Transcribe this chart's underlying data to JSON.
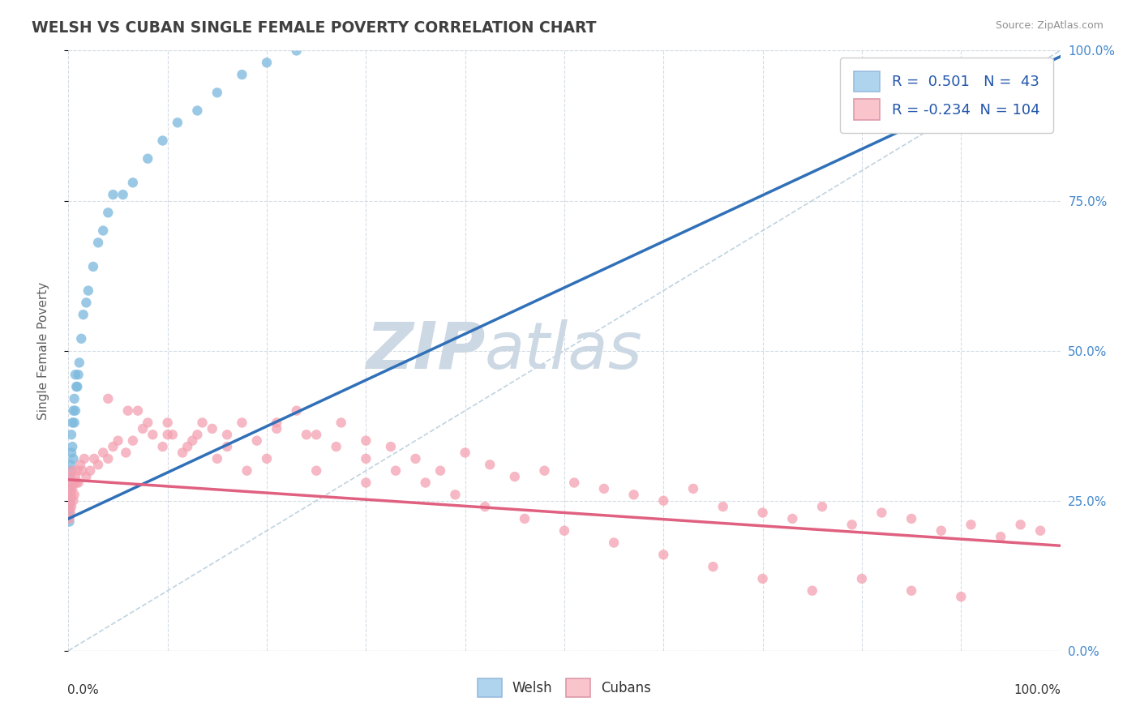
{
  "title": "WELSH VS CUBAN SINGLE FEMALE POVERTY CORRELATION CHART",
  "source": "Source: ZipAtlas.com",
  "ylabel": "Single Female Poverty",
  "right_yticklabels": [
    "0.0%",
    "25.0%",
    "50.0%",
    "75.0%",
    "100.0%"
  ],
  "welsh_R": 0.501,
  "welsh_N": 43,
  "cuban_R": -0.234,
  "cuban_N": 104,
  "welsh_color": "#7ab8dd",
  "cuban_color": "#f4a0b0",
  "welsh_legend_color": "#aed4ee",
  "cuban_legend_color": "#f9c4cc",
  "trend_welsh_color": "#3070b8",
  "trend_cuban_color": "#e06080",
  "background_color": "#ffffff",
  "watermark_color": "#ccd8e4",
  "grid_color": "#d4dce4",
  "legend_text_color": "#2255aa",
  "title_color": "#404040",
  "source_color": "#909090",
  "axis_label_color": "#606060",
  "right_tick_color": "#4488cc",
  "xlim": [
    0.0,
    1.0
  ],
  "ylim": [
    0.0,
    1.0
  ],
  "welsh_x": [
    0.001,
    0.001,
    0.001,
    0.001,
    0.001,
    0.002,
    0.002,
    0.002,
    0.002,
    0.003,
    0.003,
    0.003,
    0.004,
    0.004,
    0.005,
    0.005,
    0.006,
    0.006,
    0.007,
    0.007,
    0.008,
    0.009,
    0.01,
    0.011,
    0.013,
    0.015,
    0.018,
    0.02,
    0.025,
    0.03,
    0.035,
    0.04,
    0.045,
    0.055,
    0.065,
    0.08,
    0.095,
    0.11,
    0.13,
    0.15,
    0.175,
    0.2,
    0.23
  ],
  "welsh_y": [
    0.215,
    0.225,
    0.235,
    0.245,
    0.255,
    0.25,
    0.27,
    0.29,
    0.31,
    0.3,
    0.33,
    0.36,
    0.34,
    0.38,
    0.32,
    0.4,
    0.38,
    0.42,
    0.4,
    0.46,
    0.44,
    0.44,
    0.46,
    0.48,
    0.52,
    0.56,
    0.58,
    0.6,
    0.64,
    0.68,
    0.7,
    0.73,
    0.76,
    0.76,
    0.78,
    0.82,
    0.85,
    0.88,
    0.9,
    0.93,
    0.96,
    0.98,
    1.0
  ],
  "cuban_x": [
    0.001,
    0.001,
    0.001,
    0.002,
    0.002,
    0.002,
    0.002,
    0.003,
    0.003,
    0.003,
    0.004,
    0.004,
    0.005,
    0.005,
    0.006,
    0.007,
    0.008,
    0.009,
    0.01,
    0.012,
    0.014,
    0.016,
    0.018,
    0.022,
    0.026,
    0.03,
    0.035,
    0.04,
    0.045,
    0.05,
    0.058,
    0.065,
    0.075,
    0.085,
    0.095,
    0.105,
    0.115,
    0.125,
    0.135,
    0.145,
    0.16,
    0.175,
    0.19,
    0.21,
    0.23,
    0.25,
    0.275,
    0.3,
    0.325,
    0.35,
    0.375,
    0.4,
    0.425,
    0.45,
    0.48,
    0.51,
    0.54,
    0.57,
    0.6,
    0.63,
    0.66,
    0.7,
    0.73,
    0.76,
    0.79,
    0.82,
    0.85,
    0.88,
    0.91,
    0.94,
    0.96,
    0.98,
    0.06,
    0.08,
    0.1,
    0.12,
    0.15,
    0.18,
    0.21,
    0.24,
    0.27,
    0.3,
    0.33,
    0.36,
    0.39,
    0.42,
    0.46,
    0.5,
    0.55,
    0.6,
    0.65,
    0.7,
    0.75,
    0.8,
    0.85,
    0.9,
    0.04,
    0.07,
    0.1,
    0.13,
    0.16,
    0.2,
    0.25,
    0.3
  ],
  "cuban_y": [
    0.24,
    0.26,
    0.22,
    0.25,
    0.23,
    0.27,
    0.29,
    0.26,
    0.28,
    0.24,
    0.27,
    0.3,
    0.25,
    0.28,
    0.26,
    0.29,
    0.28,
    0.3,
    0.28,
    0.31,
    0.3,
    0.32,
    0.29,
    0.3,
    0.32,
    0.31,
    0.33,
    0.32,
    0.34,
    0.35,
    0.33,
    0.35,
    0.37,
    0.36,
    0.34,
    0.36,
    0.33,
    0.35,
    0.38,
    0.37,
    0.36,
    0.38,
    0.35,
    0.37,
    0.4,
    0.36,
    0.38,
    0.35,
    0.34,
    0.32,
    0.3,
    0.33,
    0.31,
    0.29,
    0.3,
    0.28,
    0.27,
    0.26,
    0.25,
    0.27,
    0.24,
    0.23,
    0.22,
    0.24,
    0.21,
    0.23,
    0.22,
    0.2,
    0.21,
    0.19,
    0.21,
    0.2,
    0.4,
    0.38,
    0.36,
    0.34,
    0.32,
    0.3,
    0.38,
    0.36,
    0.34,
    0.32,
    0.3,
    0.28,
    0.26,
    0.24,
    0.22,
    0.2,
    0.18,
    0.16,
    0.14,
    0.12,
    0.1,
    0.12,
    0.1,
    0.09,
    0.42,
    0.4,
    0.38,
    0.36,
    0.34,
    0.32,
    0.3,
    0.28
  ],
  "trend_welsh_x_start": 0.0,
  "trend_welsh_x_end": 1.0,
  "trend_welsh_y_start": 0.22,
  "trend_welsh_y_end": 0.99,
  "trend_cuban_x_start": 0.0,
  "trend_cuban_x_end": 1.0,
  "trend_cuban_y_start": 0.285,
  "trend_cuban_y_end": 0.175,
  "dash_line_x": [
    0.0,
    1.0
  ],
  "dash_line_y": [
    0.0,
    1.0
  ]
}
